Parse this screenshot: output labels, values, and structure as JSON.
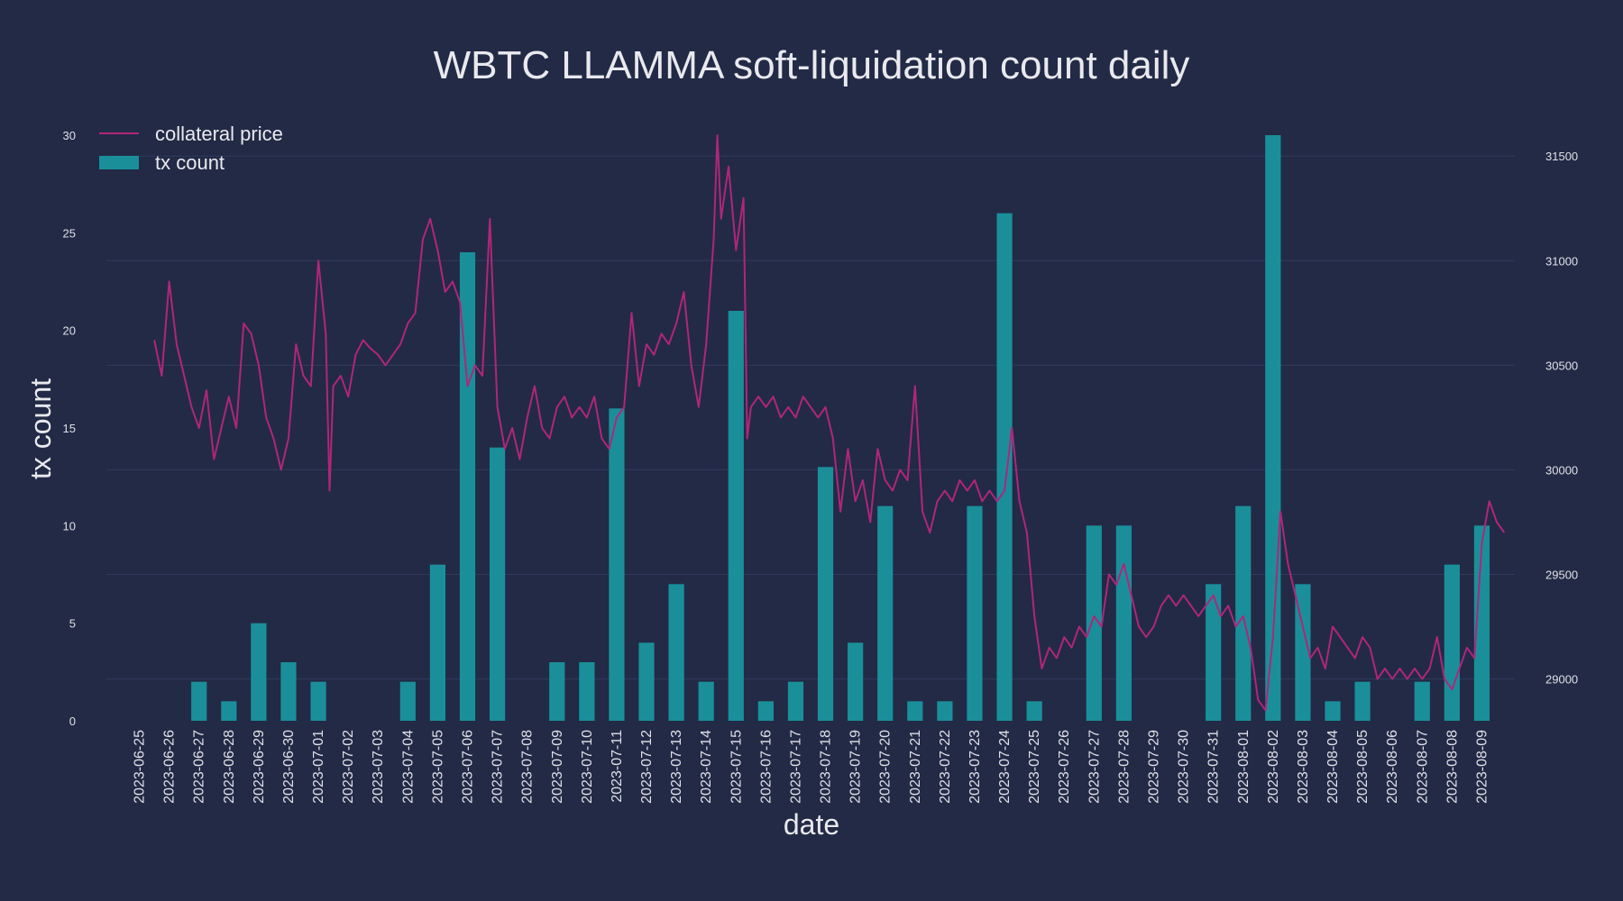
{
  "chart_data": {
    "type": "bar",
    "title": "WBTC LLAMMA soft-liquidation count daily",
    "xlabel": "date",
    "ylabel": "tx count",
    "ylim": [
      0,
      30
    ],
    "y2lim": [
      28800,
      31600
    ],
    "yticks": [
      "0",
      "5",
      "10",
      "15",
      "20",
      "25",
      "30"
    ],
    "y2ticks": [
      "29000",
      "29500",
      "30000",
      "30500",
      "31000",
      "31500"
    ],
    "grid": true,
    "legend_position": "top-left",
    "colors": {
      "background": "#222a46",
      "bars": "#1a8f9a",
      "price_line": "#b0267a"
    },
    "categories": [
      "2023-06-25",
      "2023-06-26",
      "2023-06-27",
      "2023-06-28",
      "2023-06-29",
      "2023-06-30",
      "2023-07-01",
      "2023-07-02",
      "2023-07-03",
      "2023-07-04",
      "2023-07-05",
      "2023-07-06",
      "2023-07-07",
      "2023-07-08",
      "2023-07-09",
      "2023-07-10",
      "2023-07-11",
      "2023-07-12",
      "2023-07-13",
      "2023-07-14",
      "2023-07-15",
      "2023-07-16",
      "2023-07-17",
      "2023-07-18",
      "2023-07-19",
      "2023-07-20",
      "2023-07-21",
      "2023-07-22",
      "2023-07-23",
      "2023-07-24",
      "2023-07-25",
      "2023-07-26",
      "2023-07-27",
      "2023-07-28",
      "2023-07-29",
      "2023-07-30",
      "2023-07-31",
      "2023-08-01",
      "2023-08-02",
      "2023-08-03",
      "2023-08-04",
      "2023-08-05",
      "2023-08-06",
      "2023-08-07",
      "2023-08-08",
      "2023-08-09"
    ],
    "series": [
      {
        "name": "tx count",
        "type": "bar",
        "values": [
          0,
          0,
          2,
          1,
          5,
          3,
          2,
          0,
          0,
          2,
          8,
          24,
          14,
          0,
          3,
          3,
          16,
          4,
          7,
          2,
          21,
          1,
          2,
          13,
          4,
          11,
          1,
          1,
          11,
          26,
          1,
          0,
          10,
          10,
          0,
          0,
          7,
          11,
          30,
          7,
          1,
          2,
          0,
          2,
          8,
          10
        ]
      },
      {
        "name": "collateral price",
        "type": "line",
        "points": [
          [
            "2023-06-25 12:00",
            30620
          ],
          [
            "2023-06-25 18:00",
            30450
          ],
          [
            "2023-06-26 00:00",
            30900
          ],
          [
            "2023-06-26 06:00",
            30600
          ],
          [
            "2023-06-26 12:00",
            30450
          ],
          [
            "2023-06-26 18:00",
            30300
          ],
          [
            "2023-06-27 00:00",
            30200
          ],
          [
            "2023-06-27 06:00",
            30380
          ],
          [
            "2023-06-27 12:00",
            30050
          ],
          [
            "2023-06-27 18:00",
            30200
          ],
          [
            "2023-06-28 00:00",
            30350
          ],
          [
            "2023-06-28 06:00",
            30200
          ],
          [
            "2023-06-28 12:00",
            30700
          ],
          [
            "2023-06-28 18:00",
            30650
          ],
          [
            "2023-06-29 00:00",
            30500
          ],
          [
            "2023-06-29 06:00",
            30250
          ],
          [
            "2023-06-29 12:00",
            30150
          ],
          [
            "2023-06-29 18:00",
            30000
          ],
          [
            "2023-06-30 00:00",
            30150
          ],
          [
            "2023-06-30 06:00",
            30600
          ],
          [
            "2023-06-30 12:00",
            30450
          ],
          [
            "2023-06-30 18:00",
            30400
          ],
          [
            "2023-07-01 00:00",
            31000
          ],
          [
            "2023-07-01 06:00",
            30650
          ],
          [
            "2023-07-01 09:00",
            29900
          ],
          [
            "2023-07-01 12:00",
            30400
          ],
          [
            "2023-07-01 18:00",
            30450
          ],
          [
            "2023-07-02 00:00",
            30350
          ],
          [
            "2023-07-02 06:00",
            30550
          ],
          [
            "2023-07-02 12:00",
            30620
          ],
          [
            "2023-07-02 18:00",
            30580
          ],
          [
            "2023-07-03 00:00",
            30550
          ],
          [
            "2023-07-03 06:00",
            30500
          ],
          [
            "2023-07-03 12:00",
            30550
          ],
          [
            "2023-07-03 18:00",
            30600
          ],
          [
            "2023-07-04 00:00",
            30700
          ],
          [
            "2023-07-04 06:00",
            30750
          ],
          [
            "2023-07-04 12:00",
            31100
          ],
          [
            "2023-07-04 18:00",
            31200
          ],
          [
            "2023-07-05 00:00",
            31050
          ],
          [
            "2023-07-05 06:00",
            30850
          ],
          [
            "2023-07-05 12:00",
            30900
          ],
          [
            "2023-07-05 18:00",
            30800
          ],
          [
            "2023-07-06 00:00",
            30400
          ],
          [
            "2023-07-06 06:00",
            30500
          ],
          [
            "2023-07-06 12:00",
            30450
          ],
          [
            "2023-07-06 18:00",
            31200
          ],
          [
            "2023-07-07 00:00",
            30300
          ],
          [
            "2023-07-07 06:00",
            30100
          ],
          [
            "2023-07-07 12:00",
            30200
          ],
          [
            "2023-07-07 18:00",
            30050
          ],
          [
            "2023-07-08 00:00",
            30250
          ],
          [
            "2023-07-08 06:00",
            30400
          ],
          [
            "2023-07-08 12:00",
            30200
          ],
          [
            "2023-07-08 18:00",
            30150
          ],
          [
            "2023-07-09 00:00",
            30300
          ],
          [
            "2023-07-09 06:00",
            30350
          ],
          [
            "2023-07-09 12:00",
            30250
          ],
          [
            "2023-07-09 18:00",
            30300
          ],
          [
            "2023-07-10 00:00",
            30250
          ],
          [
            "2023-07-10 06:00",
            30350
          ],
          [
            "2023-07-10 12:00",
            30150
          ],
          [
            "2023-07-10 18:00",
            30100
          ],
          [
            "2023-07-11 00:00",
            30250
          ],
          [
            "2023-07-11 06:00",
            30300
          ],
          [
            "2023-07-11 12:00",
            30750
          ],
          [
            "2023-07-11 18:00",
            30400
          ],
          [
            "2023-07-12 00:00",
            30600
          ],
          [
            "2023-07-12 06:00",
            30550
          ],
          [
            "2023-07-12 12:00",
            30650
          ],
          [
            "2023-07-12 18:00",
            30600
          ],
          [
            "2023-07-13 00:00",
            30700
          ],
          [
            "2023-07-13 06:00",
            30850
          ],
          [
            "2023-07-13 12:00",
            30500
          ],
          [
            "2023-07-13 18:00",
            30300
          ],
          [
            "2023-07-14 00:00",
            30600
          ],
          [
            "2023-07-14 06:00",
            31100
          ],
          [
            "2023-07-14 09:00",
            31600
          ],
          [
            "2023-07-14 12:00",
            31200
          ],
          [
            "2023-07-14 18:00",
            31450
          ],
          [
            "2023-07-15 00:00",
            31050
          ],
          [
            "2023-07-15 06:00",
            31300
          ],
          [
            "2023-07-15 09:00",
            30150
          ],
          [
            "2023-07-15 12:00",
            30300
          ],
          [
            "2023-07-15 18:00",
            30350
          ],
          [
            "2023-07-16 00:00",
            30300
          ],
          [
            "2023-07-16 06:00",
            30350
          ],
          [
            "2023-07-16 12:00",
            30250
          ],
          [
            "2023-07-16 18:00",
            30300
          ],
          [
            "2023-07-17 00:00",
            30250
          ],
          [
            "2023-07-17 06:00",
            30350
          ],
          [
            "2023-07-17 12:00",
            30300
          ],
          [
            "2023-07-17 18:00",
            30250
          ],
          [
            "2023-07-18 00:00",
            30300
          ],
          [
            "2023-07-18 06:00",
            30150
          ],
          [
            "2023-07-18 12:00",
            29800
          ],
          [
            "2023-07-18 18:00",
            30100
          ],
          [
            "2023-07-19 00:00",
            29850
          ],
          [
            "2023-07-19 06:00",
            29950
          ],
          [
            "2023-07-19 12:00",
            29750
          ],
          [
            "2023-07-19 18:00",
            30100
          ],
          [
            "2023-07-20 00:00",
            29950
          ],
          [
            "2023-07-20 06:00",
            29900
          ],
          [
            "2023-07-20 12:00",
            30000
          ],
          [
            "2023-07-20 18:00",
            29950
          ],
          [
            "2023-07-21 00:00",
            30400
          ],
          [
            "2023-07-21 06:00",
            29800
          ],
          [
            "2023-07-21 12:00",
            29700
          ],
          [
            "2023-07-21 18:00",
            29850
          ],
          [
            "2023-07-22 00:00",
            29900
          ],
          [
            "2023-07-22 06:00",
            29850
          ],
          [
            "2023-07-22 12:00",
            29950
          ],
          [
            "2023-07-22 18:00",
            29900
          ],
          [
            "2023-07-23 00:00",
            29950
          ],
          [
            "2023-07-23 06:00",
            29850
          ],
          [
            "2023-07-23 12:00",
            29900
          ],
          [
            "2023-07-23 18:00",
            29850
          ],
          [
            "2023-07-24 00:00",
            29900
          ],
          [
            "2023-07-24 06:00",
            30200
          ],
          [
            "2023-07-24 12:00",
            29850
          ],
          [
            "2023-07-24 18:00",
            29700
          ],
          [
            "2023-07-25 00:00",
            29300
          ],
          [
            "2023-07-25 06:00",
            29050
          ],
          [
            "2023-07-25 12:00",
            29150
          ],
          [
            "2023-07-25 18:00",
            29100
          ],
          [
            "2023-07-26 00:00",
            29200
          ],
          [
            "2023-07-26 06:00",
            29150
          ],
          [
            "2023-07-26 12:00",
            29250
          ],
          [
            "2023-07-26 18:00",
            29200
          ],
          [
            "2023-07-27 00:00",
            29300
          ],
          [
            "2023-07-27 06:00",
            29250
          ],
          [
            "2023-07-27 12:00",
            29500
          ],
          [
            "2023-07-27 18:00",
            29450
          ],
          [
            "2023-07-28 00:00",
            29550
          ],
          [
            "2023-07-28 06:00",
            29400
          ],
          [
            "2023-07-28 12:00",
            29250
          ],
          [
            "2023-07-28 18:00",
            29200
          ],
          [
            "2023-07-29 00:00",
            29250
          ],
          [
            "2023-07-29 06:00",
            29350
          ],
          [
            "2023-07-29 12:00",
            29400
          ],
          [
            "2023-07-29 18:00",
            29350
          ],
          [
            "2023-07-30 00:00",
            29400
          ],
          [
            "2023-07-30 06:00",
            29350
          ],
          [
            "2023-07-30 12:00",
            29300
          ],
          [
            "2023-07-30 18:00",
            29350
          ],
          [
            "2023-07-31 00:00",
            29400
          ],
          [
            "2023-07-31 06:00",
            29300
          ],
          [
            "2023-07-31 12:00",
            29350
          ],
          [
            "2023-07-31 18:00",
            29250
          ],
          [
            "2023-08-01 00:00",
            29300
          ],
          [
            "2023-08-01 06:00",
            29150
          ],
          [
            "2023-08-01 12:00",
            28900
          ],
          [
            "2023-08-01 18:00",
            28850
          ],
          [
            "2023-08-02 00:00",
            29200
          ],
          [
            "2023-08-02 06:00",
            29800
          ],
          [
            "2023-08-02 12:00",
            29550
          ],
          [
            "2023-08-02 18:00",
            29400
          ],
          [
            "2023-08-03 00:00",
            29250
          ],
          [
            "2023-08-03 06:00",
            29100
          ],
          [
            "2023-08-03 12:00",
            29150
          ],
          [
            "2023-08-03 18:00",
            29050
          ],
          [
            "2023-08-04 00:00",
            29250
          ],
          [
            "2023-08-04 06:00",
            29200
          ],
          [
            "2023-08-04 12:00",
            29150
          ],
          [
            "2023-08-04 18:00",
            29100
          ],
          [
            "2023-08-05 00:00",
            29200
          ],
          [
            "2023-08-05 06:00",
            29150
          ],
          [
            "2023-08-05 12:00",
            29000
          ],
          [
            "2023-08-05 18:00",
            29050
          ],
          [
            "2023-08-06 00:00",
            29000
          ],
          [
            "2023-08-06 06:00",
            29050
          ],
          [
            "2023-08-06 12:00",
            29000
          ],
          [
            "2023-08-06 18:00",
            29050
          ],
          [
            "2023-08-07 00:00",
            29000
          ],
          [
            "2023-08-07 06:00",
            29050
          ],
          [
            "2023-08-07 12:00",
            29200
          ],
          [
            "2023-08-07 18:00",
            29000
          ],
          [
            "2023-08-08 00:00",
            28950
          ],
          [
            "2023-08-08 06:00",
            29050
          ],
          [
            "2023-08-08 12:00",
            29150
          ],
          [
            "2023-08-08 18:00",
            29100
          ],
          [
            "2023-08-09 00:00",
            29650
          ],
          [
            "2023-08-09 06:00",
            29850
          ],
          [
            "2023-08-09 12:00",
            29750
          ],
          [
            "2023-08-09 18:00",
            29700
          ]
        ]
      }
    ]
  }
}
